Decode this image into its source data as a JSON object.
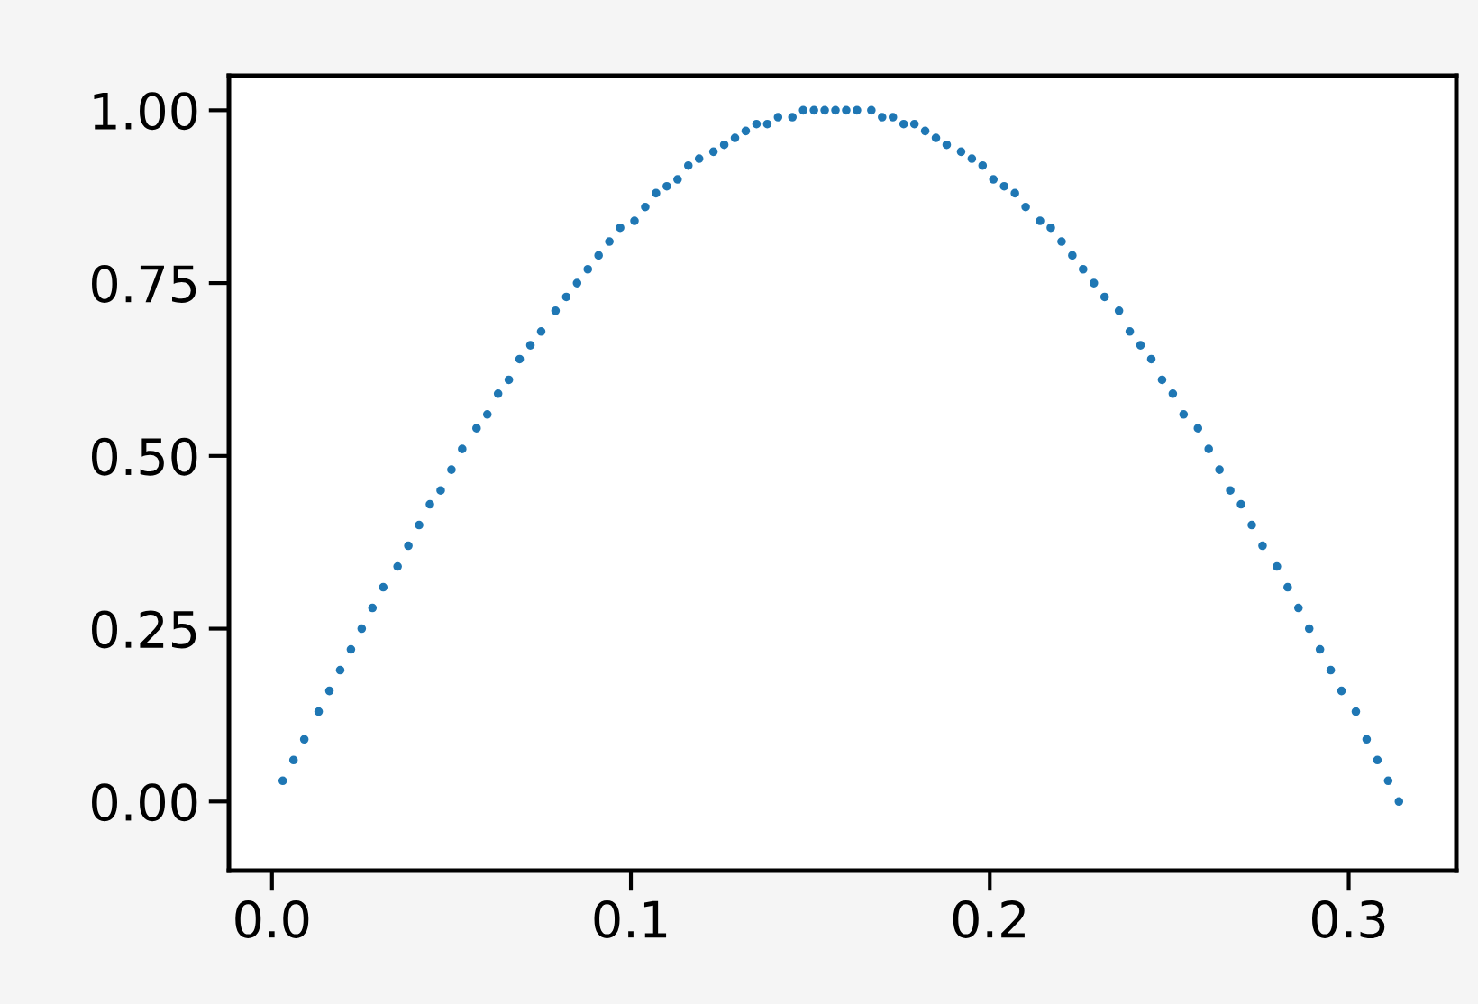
{
  "chart_data": {
    "type": "scatter",
    "x": [
      0.003,
      0.006,
      0.009,
      0.013,
      0.016,
      0.019,
      0.022,
      0.025,
      0.028,
      0.031,
      0.035,
      0.038,
      0.041,
      0.044,
      0.047,
      0.05,
      0.053,
      0.057,
      0.06,
      0.063,
      0.066,
      0.069,
      0.072,
      0.075,
      0.079,
      0.082,
      0.085,
      0.088,
      0.091,
      0.094,
      0.097,
      0.101,
      0.104,
      0.107,
      0.11,
      0.113,
      0.116,
      0.119,
      0.123,
      0.126,
      0.129,
      0.132,
      0.135,
      0.138,
      0.141,
      0.145,
      0.148,
      0.151,
      0.154,
      0.157,
      0.16,
      0.163,
      0.167,
      0.17,
      0.173,
      0.176,
      0.179,
      0.182,
      0.185,
      0.188,
      0.192,
      0.195,
      0.198,
      0.201,
      0.204,
      0.207,
      0.21,
      0.214,
      0.217,
      0.22,
      0.223,
      0.226,
      0.229,
      0.232,
      0.236,
      0.239,
      0.242,
      0.245,
      0.248,
      0.251,
      0.254,
      0.258,
      0.261,
      0.264,
      0.267,
      0.27,
      0.273,
      0.276,
      0.28,
      0.283,
      0.286,
      0.289,
      0.292,
      0.295,
      0.298,
      0.302,
      0.305,
      0.308,
      0.311,
      0.314
    ],
    "series": [
      {
        "color": "#1f77b4",
        "values": [
          0.03,
          0.06,
          0.09,
          0.13,
          0.16,
          0.19,
          0.22,
          0.25,
          0.28,
          0.31,
          0.34,
          0.37,
          0.4,
          0.43,
          0.45,
          0.48,
          0.51,
          0.54,
          0.56,
          0.59,
          0.61,
          0.64,
          0.66,
          0.68,
          0.71,
          0.73,
          0.75,
          0.77,
          0.79,
          0.81,
          0.83,
          0.84,
          0.86,
          0.88,
          0.89,
          0.9,
          0.92,
          0.93,
          0.94,
          0.95,
          0.96,
          0.97,
          0.98,
          0.98,
          0.99,
          0.99,
          1.0,
          1.0,
          1.0,
          1.0,
          1.0,
          1.0,
          1.0,
          0.99,
          0.99,
          0.98,
          0.98,
          0.97,
          0.96,
          0.95,
          0.94,
          0.93,
          0.92,
          0.9,
          0.89,
          0.88,
          0.86,
          0.84,
          0.83,
          0.81,
          0.79,
          0.77,
          0.75,
          0.73,
          0.71,
          0.68,
          0.66,
          0.64,
          0.61,
          0.59,
          0.56,
          0.54,
          0.51,
          0.48,
          0.45,
          0.43,
          0.4,
          0.37,
          0.34,
          0.31,
          0.28,
          0.25,
          0.22,
          0.19,
          0.16,
          0.13,
          0.09,
          0.06,
          0.03,
          0.0
        ]
      }
    ],
    "xlim": [
      -0.012,
      0.33
    ],
    "ylim": [
      -0.1,
      1.05
    ],
    "xticks": [
      {
        "value": 0,
        "label": "0.0"
      },
      0.1,
      0.2,
      0.3
    ],
    "yticks": [
      {
        "value": 0,
        "label": "0.00"
      },
      {
        "value": 0.25,
        "label": "0.25"
      },
      {
        "value": 0.5,
        "label": "0.50"
      },
      {
        "value": 0.75,
        "label": "0.75"
      },
      {
        "value": 1,
        "label": "1.00"
      }
    ],
    "marker": "circle",
    "grid": false
  }
}
